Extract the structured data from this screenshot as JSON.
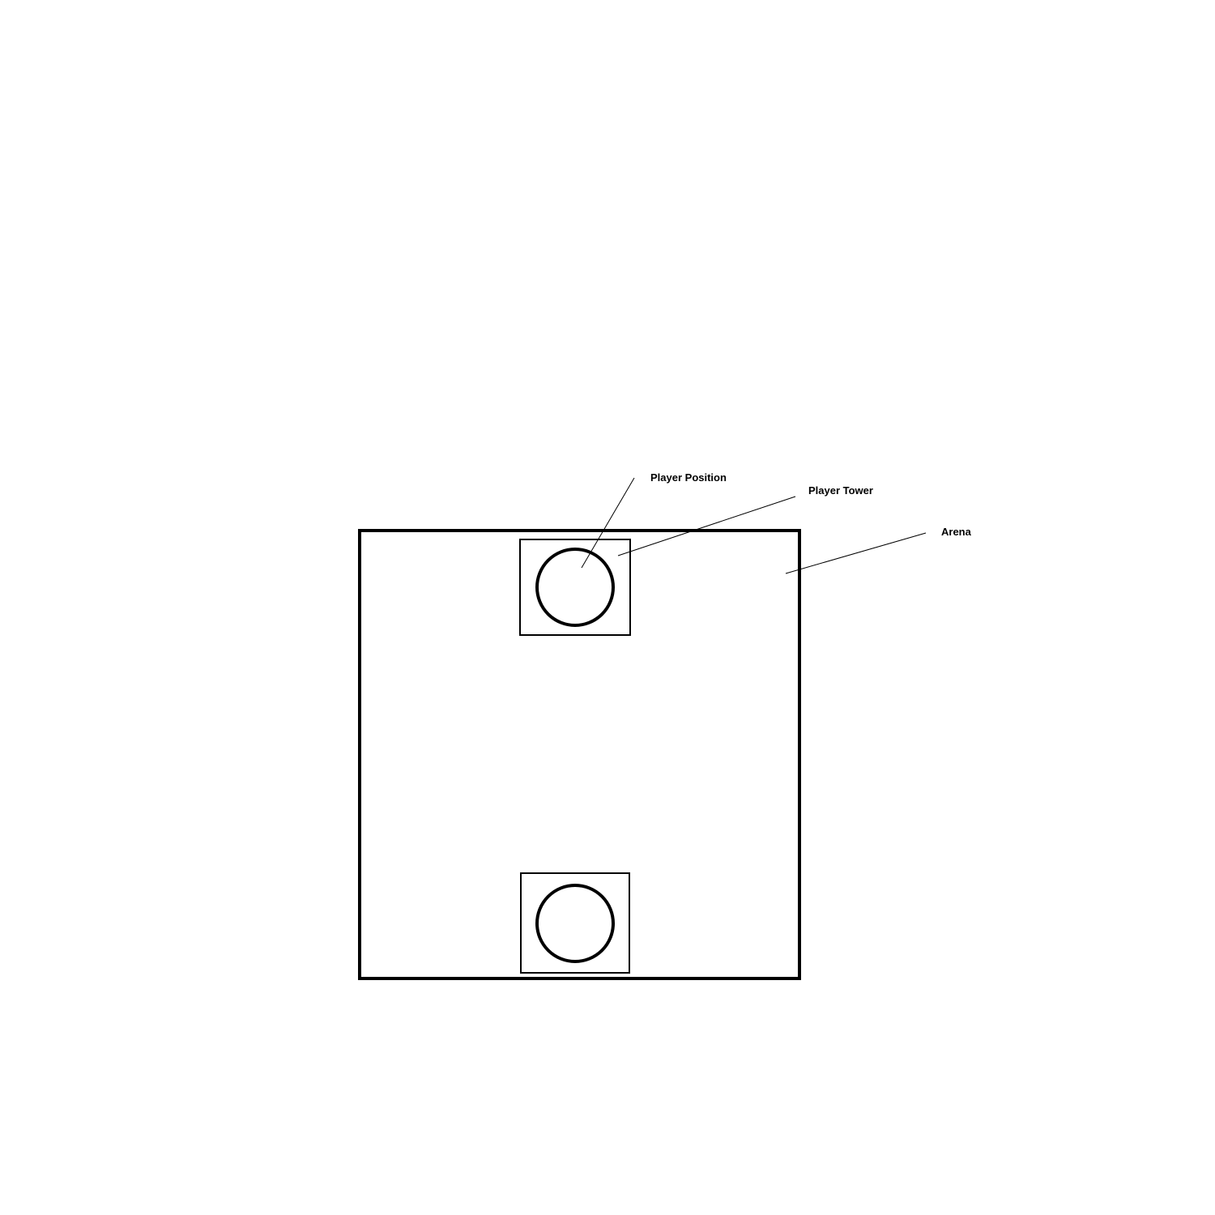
{
  "labels": {
    "player_position": "Player Position",
    "player_tower": "Player Tower",
    "arena": "Arena"
  }
}
